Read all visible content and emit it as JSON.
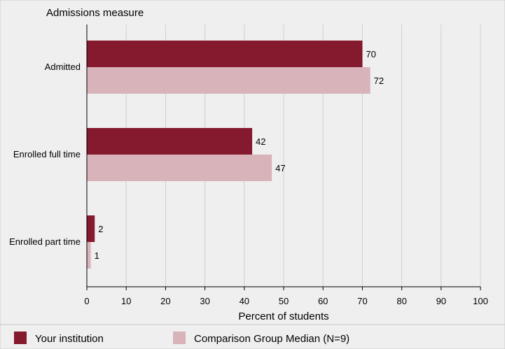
{
  "chart_data": {
    "type": "bar",
    "orientation": "horizontal",
    "title": "Admissions measure",
    "xlabel": "Percent of students",
    "ylabel": "",
    "xlim": [
      0,
      100
    ],
    "xticks": [
      0,
      10,
      20,
      30,
      40,
      50,
      60,
      70,
      80,
      90,
      100
    ],
    "grid": true,
    "legend_position": "bottom",
    "categories": [
      "Admitted",
      "Enrolled full time",
      "Enrolled part time"
    ],
    "series": [
      {
        "name": "Your institution",
        "color": "#85192d",
        "values": [
          70,
          42,
          2
        ]
      },
      {
        "name": "Comparison Group Median (N=9)",
        "color": "#d9b3ba",
        "values": [
          72,
          47,
          1
        ]
      }
    ]
  }
}
